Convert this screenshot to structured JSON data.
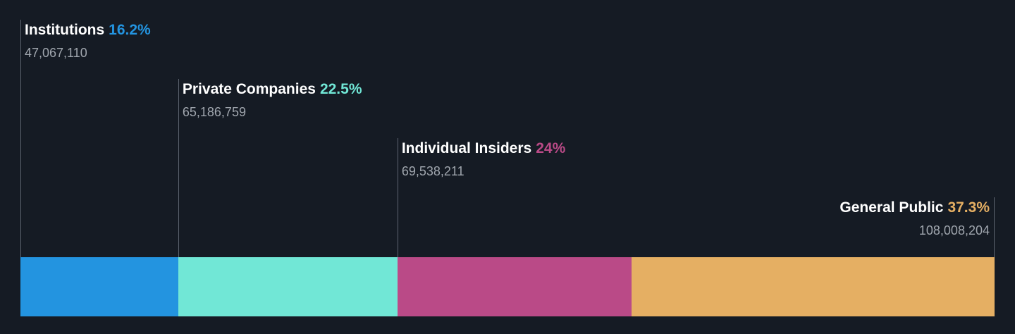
{
  "chart_data": {
    "type": "bar",
    "subtype": "stacked-horizontal-100",
    "series": [
      {
        "name": "Institutions",
        "percent_label": "16.2%",
        "percent": 16.2,
        "shares": "47,067,110",
        "color": "#2394e0"
      },
      {
        "name": "Private Companies",
        "percent_label": "22.5%",
        "percent": 22.5,
        "shares": "65,186,759",
        "color": "#71e7d6"
      },
      {
        "name": "Individual Insiders",
        "percent_label": "24%",
        "percent": 24.0,
        "shares": "69,538,211",
        "color": "#ba4a87"
      },
      {
        "name": "General Public",
        "percent_label": "37.3%",
        "percent": 37.3,
        "shares": "108,008,204",
        "color": "#e5af63"
      }
    ]
  }
}
